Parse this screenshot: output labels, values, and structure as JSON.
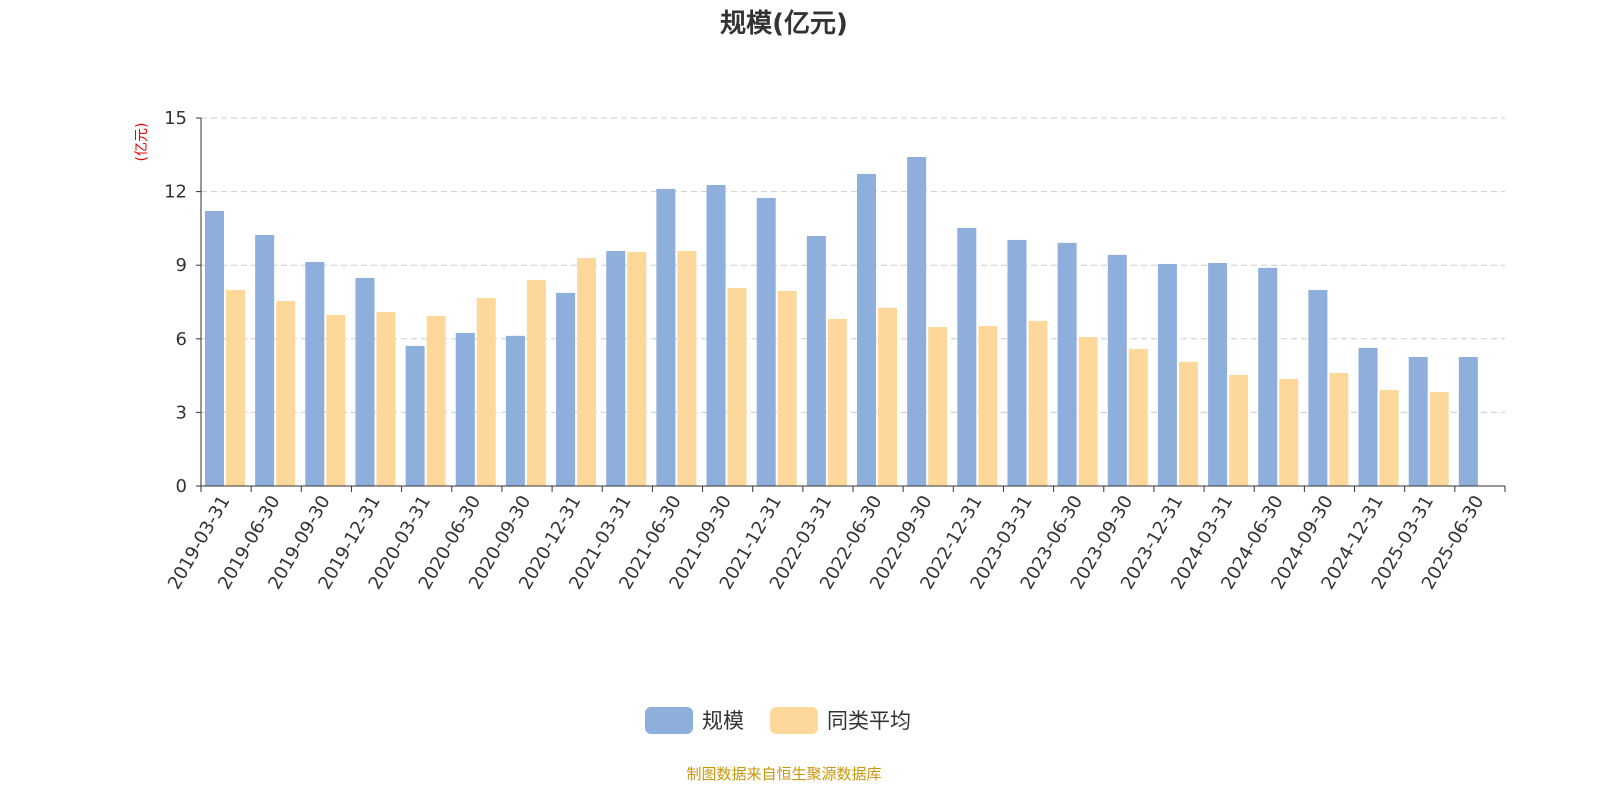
{
  "chart_data": {
    "type": "bar",
    "title": "规模(亿元)",
    "ylabel": "(亿元)",
    "xlabel": "",
    "ylim": [
      0,
      15
    ],
    "yticks": [
      0,
      3,
      6,
      9,
      12,
      15
    ],
    "grid": true,
    "legend_position": "bottom-center",
    "categories": [
      "2019-03-31",
      "2019-06-30",
      "2019-09-30",
      "2019-12-31",
      "2020-03-31",
      "2020-06-30",
      "2020-09-30",
      "2020-12-31",
      "2021-03-31",
      "2021-06-30",
      "2021-09-30",
      "2021-12-31",
      "2022-03-31",
      "2022-06-30",
      "2022-09-30",
      "2022-12-31",
      "2023-03-31",
      "2023-06-30",
      "2023-09-30",
      "2023-12-31",
      "2024-03-31",
      "2024-06-30",
      "2024-09-30",
      "2024-12-31",
      "2025-03-31",
      "2025-06-30"
    ],
    "series": [
      {
        "name": "规模",
        "color": "#8eaedb",
        "values": [
          11.21,
          10.23,
          9.13,
          8.48,
          5.71,
          6.24,
          6.12,
          7.87,
          9.58,
          12.11,
          12.27,
          11.74,
          10.19,
          12.72,
          13.41,
          10.52,
          10.03,
          9.91,
          9.42,
          9.05,
          9.09,
          8.89,
          7.99,
          5.63,
          5.26,
          5.26
        ]
      },
      {
        "name": "同类平均",
        "color": "#fed89a",
        "values": [
          7.99,
          7.54,
          6.97,
          7.09,
          6.93,
          7.66,
          8.4,
          9.29,
          9.54,
          9.58,
          8.07,
          7.95,
          6.81,
          7.26,
          6.48,
          6.52,
          6.73,
          6.07,
          5.59,
          5.06,
          4.53,
          4.36,
          4.61,
          3.91,
          3.83,
          null
        ]
      }
    ]
  },
  "footer": "制图数据来自恒生聚源数据库"
}
